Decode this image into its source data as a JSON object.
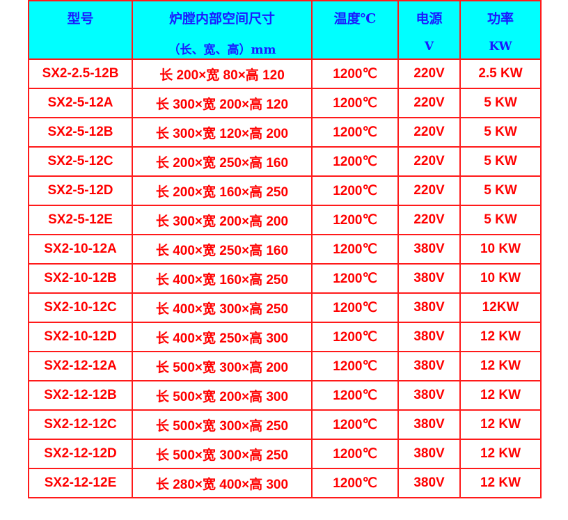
{
  "colors": {
    "header_bg": "#00ffff",
    "header_text": "#1a1aff",
    "body_text": "#ff0000",
    "border": "#ff1a1a"
  },
  "headers": [
    {
      "line1": "型号",
      "line2": ""
    },
    {
      "line1": "炉膛内部空间尺寸",
      "line2": "（长、宽、高）mm"
    },
    {
      "line1": "温度℃",
      "line2": ""
    },
    {
      "line1": "电源",
      "line2": "V"
    },
    {
      "line1": "功率",
      "line2": "KW"
    }
  ],
  "rows": [
    [
      "SX2-2.5-12B",
      "长 200×宽 80×高 120",
      "1200℃",
      "220V",
      "2.5 KW"
    ],
    [
      "SX2-5-12A",
      "长 300×宽 200×高 120",
      "1200℃",
      "220V",
      "5 KW"
    ],
    [
      "SX2-5-12B",
      "长 300×宽 120×高 200",
      "1200℃",
      "220V",
      "5 KW"
    ],
    [
      "SX2-5-12C",
      "长 200×宽 250×高 160",
      "1200℃",
      "220V",
      "5 KW"
    ],
    [
      "SX2-5-12D",
      "长 200×宽 160×高 250",
      "1200℃",
      "220V",
      "5 KW"
    ],
    [
      "SX2-5-12E",
      "长 300×宽 200×高 200",
      "1200℃",
      "220V",
      "5 KW"
    ],
    [
      "SX2-10-12A",
      "长 400×宽 250×高 160",
      "1200℃",
      "380V",
      "10 KW"
    ],
    [
      "SX2-10-12B",
      "长 400×宽 160×高 250",
      "1200℃",
      "380V",
      "10 KW"
    ],
    [
      "SX2-10-12C",
      "长 400×宽 300×高 250",
      "1200℃",
      "380V",
      "12KW"
    ],
    [
      "SX2-10-12D",
      "长 400×宽 250×高 300",
      "1200℃",
      "380V",
      "12 KW"
    ],
    [
      "SX2-12-12A",
      "长 500×宽 300×高 200",
      "1200℃",
      "380V",
      "12 KW"
    ],
    [
      "SX2-12-12B",
      "长 500×宽 200×高 300",
      "1200℃",
      "380V",
      "12 KW"
    ],
    [
      "SX2-12-12C",
      "长 500×宽 300×高 250",
      "1200℃",
      "380V",
      "12 KW"
    ],
    [
      "SX2-12-12D",
      "长 500×宽 300×高 250",
      "1200℃",
      "380V",
      "12 KW"
    ],
    [
      "SX2-12-12E",
      "长 280×宽 400×高 300",
      "1200℃",
      "380V",
      "12 KW"
    ]
  ]
}
